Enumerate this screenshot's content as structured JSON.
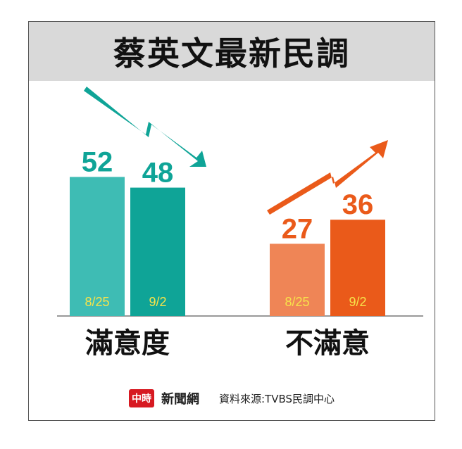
{
  "title": "蔡英文最新民調",
  "colors": {
    "satisfied_old": "#3ebcb4",
    "satisfied_new": "#0fa497",
    "unsatisfied_old": "#ef8556",
    "unsatisfied_new": "#ea5a1a",
    "date_label": "#f7e34a",
    "baseline": "#999999"
  },
  "chart_data": {
    "type": "bar",
    "groups": [
      {
        "name": "滿意度",
        "trend": "down",
        "bars": [
          {
            "label": "8/25",
            "value": 52
          },
          {
            "label": "9/2",
            "value": 48
          }
        ]
      },
      {
        "name": "不滿意",
        "trend": "up",
        "bars": [
          {
            "label": "8/25",
            "value": 27
          },
          {
            "label": "9/2",
            "value": 36
          }
        ]
      }
    ]
  },
  "footer": {
    "logo_badge": "中時",
    "logo_text": "新聞網",
    "source": "資料來源:TVBS民調中心"
  }
}
